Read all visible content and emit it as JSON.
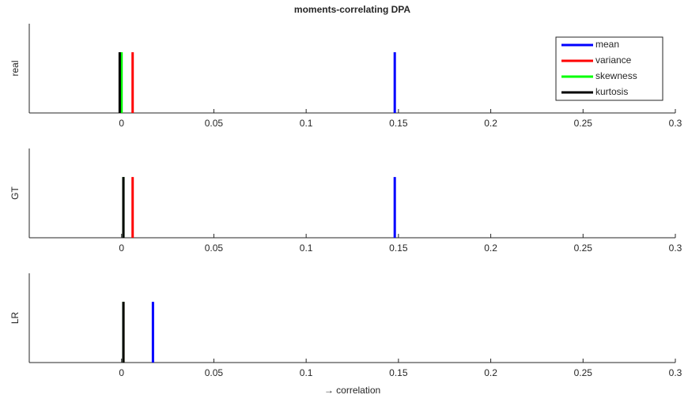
{
  "chart_data": [
    {
      "type": "spike",
      "title": "moments-correlating DPA",
      "ylabel": "real",
      "legend": "northeast",
      "xlim": [
        -0.05,
        0.3
      ],
      "xticks": [
        0,
        0.05,
        0.1,
        0.15,
        0.2,
        0.25,
        0.3
      ],
      "series": [
        {
          "name": "mean",
          "color": "#0000ff",
          "values": [
            0.148
          ]
        },
        {
          "name": "variance",
          "color": "#ff0000",
          "values": [
            0.006
          ]
        },
        {
          "name": "skewness",
          "color": "#00ff00",
          "values": [
            0
          ]
        },
        {
          "name": "kurtosis",
          "color": "#000000",
          "values": [
            -0.001
          ]
        }
      ]
    },
    {
      "type": "spike",
      "ylabel": "GT",
      "xlim": [
        -0.05,
        0.3
      ],
      "xticks": [
        0,
        0.05,
        0.1,
        0.15,
        0.2,
        0.25,
        0.3
      ],
      "series": [
        {
          "color": "#0000ff",
          "values": [
            0.148
          ]
        },
        {
          "color": "#ff0000",
          "values": [
            0.006
          ]
        },
        {
          "color": "#00ff00",
          "values": [
            0.001
          ]
        },
        {
          "color": "#000000",
          "values": [
            0.001
          ]
        }
      ]
    },
    {
      "type": "spike",
      "ylabel": "LR",
      "xlabel": "→ correlation",
      "xlim": [
        -0.05,
        0.3
      ],
      "xticks": [
        0,
        0.05,
        0.1,
        0.15,
        0.2,
        0.25,
        0.3
      ],
      "series": [
        {
          "color": "#0000ff",
          "values": [
            0.017
          ]
        },
        {
          "color": "#ff0000",
          "values": [
            0.001
          ]
        },
        {
          "color": "#00ff00",
          "values": [
            0.001
          ]
        },
        {
          "color": "#000000",
          "values": [
            0.001
          ]
        }
      ]
    }
  ]
}
